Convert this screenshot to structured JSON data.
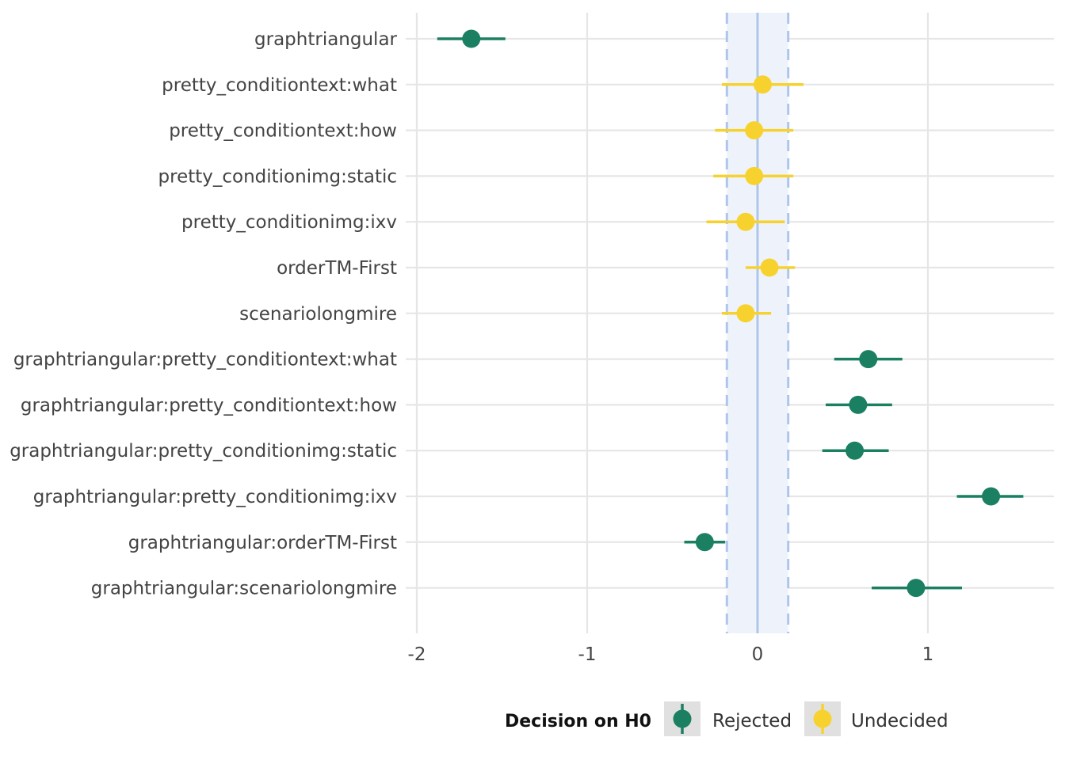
{
  "chart_data": {
    "type": "scatter",
    "subtype": "coefficient-interval",
    "title": "",
    "xlabel": "",
    "ylabel": "",
    "xlim": [
      -2.0,
      1.75
    ],
    "x_ticks": [
      -2,
      -1,
      0,
      1
    ],
    "x_tick_labels": [
      "-2",
      "-1",
      "0",
      "1"
    ],
    "grid": true,
    "rope": {
      "low": -0.18,
      "high": 0.18,
      "center": 0
    },
    "colors": {
      "Rejected": "#1b7f62",
      "Undecided": "#f7d22f",
      "rope_fill": "#eef3fb",
      "rope_line": "#adc6ea",
      "grid": "#e6e6e6",
      "legend_key_bg": "#e0e0e0"
    },
    "categories": [
      "graphtriangular",
      "pretty_conditiontext:what",
      "pretty_conditiontext:how",
      "pretty_conditionimg:static",
      "pretty_conditionimg:ixv",
      "orderTM-First",
      "scenariolongmire",
      "graphtriangular:pretty_conditiontext:what",
      "graphtriangular:pretty_conditiontext:how",
      "graphtriangular:pretty_conditionimg:static",
      "graphtriangular:pretty_conditionimg:ixv",
      "graphtriangular:orderTM-First",
      "graphtriangular:scenariolongmire"
    ],
    "points": [
      {
        "term": "graphtriangular",
        "estimate": -1.68,
        "low": -1.88,
        "high": -1.48,
        "decision": "Rejected"
      },
      {
        "term": "pretty_conditiontext:what",
        "estimate": 0.03,
        "low": -0.21,
        "high": 0.27,
        "decision": "Undecided"
      },
      {
        "term": "pretty_conditiontext:how",
        "estimate": -0.02,
        "low": -0.25,
        "high": 0.21,
        "decision": "Undecided"
      },
      {
        "term": "pretty_conditionimg:static",
        "estimate": -0.02,
        "low": -0.26,
        "high": 0.21,
        "decision": "Undecided"
      },
      {
        "term": "pretty_conditionimg:ixv",
        "estimate": -0.07,
        "low": -0.3,
        "high": 0.16,
        "decision": "Undecided"
      },
      {
        "term": "orderTM-First",
        "estimate": 0.07,
        "low": -0.07,
        "high": 0.22,
        "decision": "Undecided"
      },
      {
        "term": "scenariolongmire",
        "estimate": -0.07,
        "low": -0.21,
        "high": 0.08,
        "decision": "Undecided"
      },
      {
        "term": "graphtriangular:pretty_conditiontext:what",
        "estimate": 0.65,
        "low": 0.45,
        "high": 0.85,
        "decision": "Rejected"
      },
      {
        "term": "graphtriangular:pretty_conditiontext:how",
        "estimate": 0.59,
        "low": 0.4,
        "high": 0.79,
        "decision": "Rejected"
      },
      {
        "term": "graphtriangular:pretty_conditionimg:static",
        "estimate": 0.57,
        "low": 0.38,
        "high": 0.77,
        "decision": "Rejected"
      },
      {
        "term": "graphtriangular:pretty_conditionimg:ixv",
        "estimate": 1.37,
        "low": 1.17,
        "high": 1.56,
        "decision": "Rejected"
      },
      {
        "term": "graphtriangular:orderTM-First",
        "estimate": -0.31,
        "low": -0.43,
        "high": -0.19,
        "decision": "Rejected"
      },
      {
        "term": "graphtriangular:scenariolongmire",
        "estimate": 0.93,
        "low": 0.67,
        "high": 1.2,
        "decision": "Rejected"
      }
    ],
    "legend": {
      "position": "bottom",
      "title": "Decision on H0",
      "entries": [
        "Rejected",
        "Undecided"
      ]
    }
  }
}
